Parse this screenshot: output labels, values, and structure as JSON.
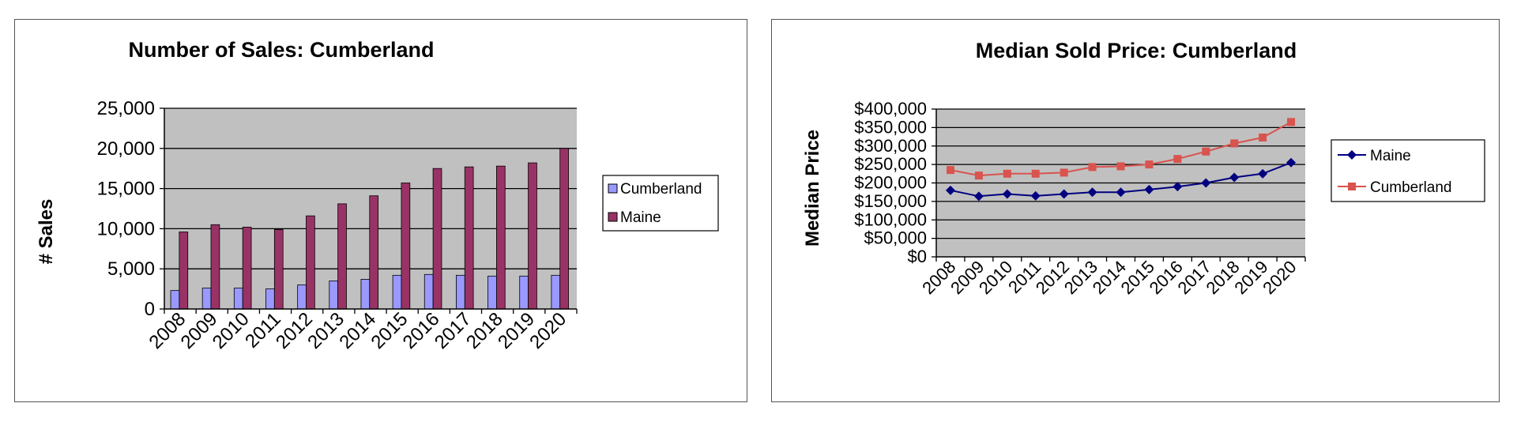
{
  "chart_data": [
    {
      "type": "bar",
      "title": "Number of Sales: Cumberland",
      "xlabel": "",
      "ylabel": "# Sales",
      "ylim": [
        0,
        25000
      ],
      "yticks": [
        "0",
        "5,000",
        "10,000",
        "15,000",
        "20,000",
        "25,000"
      ],
      "categories": [
        "2008",
        "2009",
        "2010",
        "2011",
        "2012",
        "2013",
        "2014",
        "2015",
        "2016",
        "2017",
        "2018",
        "2019",
        "2020"
      ],
      "series": [
        {
          "name": "Cumberland",
          "color": "#9999ff",
          "values": [
            2300,
            2600,
            2600,
            2500,
            3000,
            3500,
            3700,
            4200,
            4300,
            4200,
            4100,
            4100,
            4200
          ]
        },
        {
          "name": "Maine",
          "color": "#993366",
          "values": [
            9600,
            10500,
            10200,
            9900,
            11600,
            13100,
            14100,
            15700,
            17500,
            17700,
            17800,
            18200,
            20000
          ]
        }
      ],
      "plot_bg": "#c0c0c0",
      "grid": true,
      "legend": "right"
    },
    {
      "type": "line",
      "title": "Median Sold Price: Cumberland",
      "xlabel": "",
      "ylabel": "Median Price",
      "ylim": [
        0,
        400000
      ],
      "yticks": [
        "$0",
        "$50,000",
        "$100,000",
        "$150,000",
        "$200,000",
        "$250,000",
        "$300,000",
        "$350,000",
        "$400,000"
      ],
      "categories": [
        "2008",
        "2009",
        "2010",
        "2011",
        "2012",
        "2013",
        "2014",
        "2015",
        "2016",
        "2017",
        "2018",
        "2019",
        "2020"
      ],
      "series": [
        {
          "name": "Maine",
          "color": "#000080",
          "marker": "diamond",
          "values": [
            180000,
            164000,
            170000,
            165000,
            170000,
            175000,
            175000,
            182000,
            190000,
            200000,
            215000,
            225000,
            255000
          ]
        },
        {
          "name": "Cumberland",
          "color": "#d9534f",
          "marker": "square",
          "values": [
            235000,
            220000,
            225000,
            225000,
            228000,
            243000,
            245000,
            250000,
            265000,
            285000,
            307000,
            323000,
            365000
          ]
        }
      ],
      "plot_bg": "#c0c0c0",
      "grid": true,
      "legend": "right"
    }
  ]
}
